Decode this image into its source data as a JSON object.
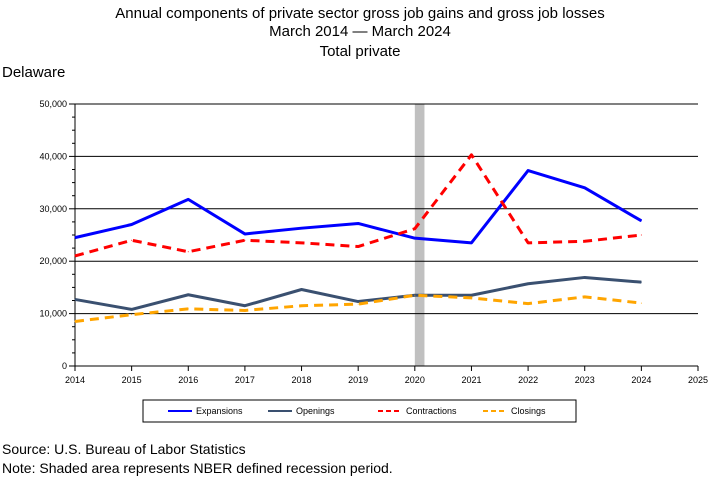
{
  "title": {
    "line1": "Annual components of private sector gross job gains and gross job losses",
    "line2": "March 2014 — March 2024",
    "line3": "Total private"
  },
  "region": "Delaware",
  "source": "Source: U.S. Bureau of Labor Statistics",
  "note": "Note: Shaded area represents NBER defined recession period.",
  "colors": {
    "expansions": "#0000ff",
    "openings": "#3a5070",
    "contractions": "#ff0000",
    "closings": "#ffa500",
    "recession": "#c0c0c0"
  },
  "chart_data": {
    "type": "line",
    "x": [
      2014,
      2015,
      2016,
      2017,
      2018,
      2019,
      2020,
      2021,
      2022,
      2023,
      2024
    ],
    "xlim": [
      2014,
      2025
    ],
    "xticks": [
      "2014",
      "2015",
      "2016",
      "2017",
      "2018",
      "2019",
      "2020",
      "2021",
      "2022",
      "2023",
      "2024",
      "2025"
    ],
    "ylim": [
      0,
      50000
    ],
    "yticks": [
      "0",
      "10,000",
      "20,000",
      "30,000",
      "40,000",
      "50,000"
    ],
    "grid": true,
    "legend_position": "bottom",
    "recession": [
      2020.0,
      2020.17
    ],
    "series": [
      {
        "name": "Expansions",
        "key": "expansions",
        "dash": "solid",
        "values": [
          24500,
          27000,
          31800,
          25200,
          26300,
          27200,
          24400,
          23500,
          37300,
          34000,
          27700
        ]
      },
      {
        "name": "Openings",
        "key": "openings",
        "dash": "solid",
        "values": [
          12700,
          10800,
          13600,
          11500,
          14600,
          12300,
          13500,
          13500,
          15700,
          16900,
          16000
        ]
      },
      {
        "name": "Contractions",
        "key": "contractions",
        "dash": "dashed",
        "values": [
          21000,
          24000,
          21800,
          24000,
          23500,
          22800,
          26200,
          40300,
          23500,
          23800,
          25000
        ]
      },
      {
        "name": "Closings",
        "key": "closings",
        "dash": "dashed",
        "values": [
          8500,
          9800,
          10900,
          10600,
          11500,
          11800,
          13500,
          13000,
          11900,
          13200,
          12000
        ]
      }
    ]
  }
}
